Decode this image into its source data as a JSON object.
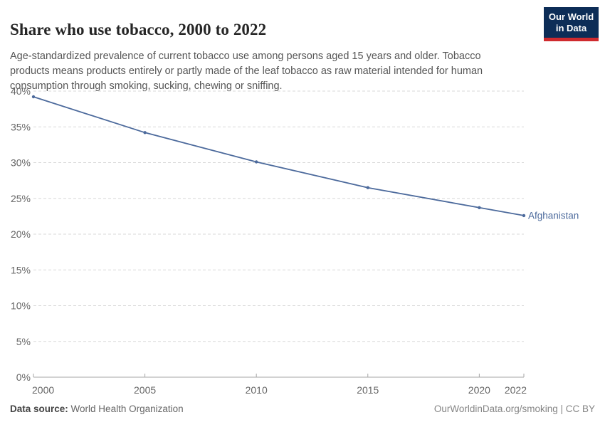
{
  "header": {
    "title": "Share who use tobacco, 2000 to 2022",
    "subtitle": "Age-standardized prevalence of current tobacco use among persons aged 15 years and older. Tobacco products means products entirely or partly made of the leaf tobacco as raw material intended for human consumption through smoking, sucking, chewing or sniffing.",
    "logo_line1": "Our World",
    "logo_line2": "in Data",
    "logo_bg_color": "#0d2d57",
    "logo_stripe_color": "#cf2a2e"
  },
  "chart_data": {
    "type": "line",
    "title": "Share who use tobacco, 2000 to 2022",
    "x": [
      2000,
      2005,
      2010,
      2015,
      2020,
      2022
    ],
    "series": [
      {
        "name": "Afghanistan",
        "color": "#4c6a9c",
        "values": [
          39.2,
          34.2,
          30.1,
          26.5,
          23.7,
          22.6
        ]
      }
    ],
    "xlim": [
      2000,
      2022
    ],
    "ylim": [
      0,
      40
    ],
    "xticks": [
      2000,
      2005,
      2010,
      2015,
      2020,
      2022
    ],
    "yticks": [
      0,
      5,
      10,
      15,
      20,
      25,
      30,
      35,
      40
    ],
    "ytick_suffix": "%",
    "grid": true,
    "legend": "end-of-line-label",
    "gridline_color": "#d9d9d9",
    "axis_color": "#a5a5a5",
    "tick_label_color": "#666666"
  },
  "footer": {
    "datasource_label": "Data source:",
    "datasource_value": "World Health Organization",
    "credit": "OurWorldinData.org/smoking | CC BY"
  }
}
